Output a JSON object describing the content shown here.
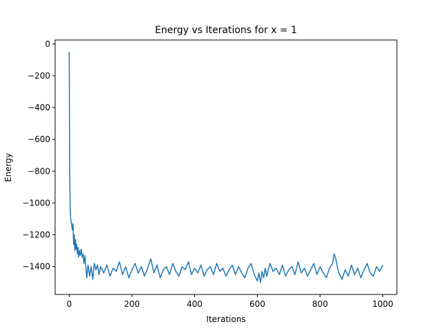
{
  "chart_data": {
    "type": "line",
    "title": "Energy vs Iterations for x = 1",
    "xlabel": "Iterations",
    "ylabel": "Energy",
    "xlim": [
      -45,
      1045
    ],
    "ylim": [
      -1575,
      25
    ],
    "xticks": [
      0,
      200,
      400,
      600,
      800,
      1000
    ],
    "xtick_labels": [
      "0",
      "200",
      "400",
      "600",
      "800",
      "1000"
    ],
    "yticks": [
      0,
      -200,
      -400,
      -600,
      -800,
      -1000,
      -1200,
      -1400
    ],
    "ytick_labels": [
      "0",
      "−200",
      "−400",
      "−600",
      "−800",
      "−1000",
      "−1200",
      "−1400"
    ],
    "grid": false,
    "line_color": "#1f77b4",
    "series": [
      {
        "x": [
          0,
          1,
          2,
          3,
          4,
          5,
          6,
          8,
          10,
          12,
          14,
          16,
          18,
          20,
          22,
          24,
          26,
          28,
          30,
          32,
          35,
          38,
          41,
          44,
          47,
          50,
          53,
          56,
          60,
          65,
          70,
          75,
          80,
          85,
          90,
          95,
          100,
          110,
          120,
          130,
          140,
          150,
          160,
          170,
          180,
          190,
          200,
          210,
          220,
          230,
          240,
          250,
          260,
          270,
          280,
          290,
          300,
          310,
          320,
          330,
          340,
          350,
          360,
          370,
          380,
          390,
          400,
          410,
          420,
          430,
          440,
          450,
          460,
          470,
          480,
          490,
          500,
          510,
          520,
          530,
          540,
          550,
          560,
          570,
          580,
          590,
          600,
          605,
          610,
          615,
          620,
          625,
          630,
          640,
          650,
          660,
          670,
          680,
          690,
          700,
          710,
          720,
          730,
          740,
          750,
          760,
          770,
          780,
          790,
          800,
          810,
          820,
          830,
          840,
          845,
          850,
          855,
          860,
          870,
          880,
          890,
          900,
          910,
          920,
          930,
          940,
          950,
          960,
          970,
          980,
          990,
          1000
        ],
        "y": [
          -50,
          -600,
          -900,
          -1000,
          -1080,
          -1100,
          -1120,
          -1140,
          -1170,
          -1130,
          -1260,
          -1200,
          -1300,
          -1230,
          -1290,
          -1260,
          -1320,
          -1280,
          -1340,
          -1300,
          -1330,
          -1290,
          -1340,
          -1320,
          -1380,
          -1330,
          -1400,
          -1470,
          -1390,
          -1460,
          -1400,
          -1480,
          -1380,
          -1420,
          -1390,
          -1450,
          -1400,
          -1440,
          -1390,
          -1460,
          -1410,
          -1430,
          -1370,
          -1450,
          -1400,
          -1470,
          -1420,
          -1380,
          -1440,
          -1400,
          -1460,
          -1410,
          -1350,
          -1440,
          -1390,
          -1470,
          -1420,
          -1400,
          -1450,
          -1380,
          -1430,
          -1460,
          -1400,
          -1420,
          -1370,
          -1450,
          -1410,
          -1440,
          -1390,
          -1460,
          -1420,
          -1400,
          -1450,
          -1380,
          -1430,
          -1410,
          -1460,
          -1420,
          -1390,
          -1450,
          -1400,
          -1440,
          -1470,
          -1410,
          -1380,
          -1450,
          -1490,
          -1440,
          -1500,
          -1430,
          -1470,
          -1410,
          -1460,
          -1380,
          -1430,
          -1410,
          -1450,
          -1390,
          -1460,
          -1420,
          -1400,
          -1450,
          -1370,
          -1440,
          -1410,
          -1460,
          -1420,
          -1380,
          -1450,
          -1400,
          -1440,
          -1470,
          -1410,
          -1380,
          -1320,
          -1350,
          -1400,
          -1440,
          -1480,
          -1420,
          -1460,
          -1390,
          -1450,
          -1410,
          -1470,
          -1420,
          -1380,
          -1440,
          -1460,
          -1400,
          -1430,
          -1390
        ]
      }
    ]
  }
}
